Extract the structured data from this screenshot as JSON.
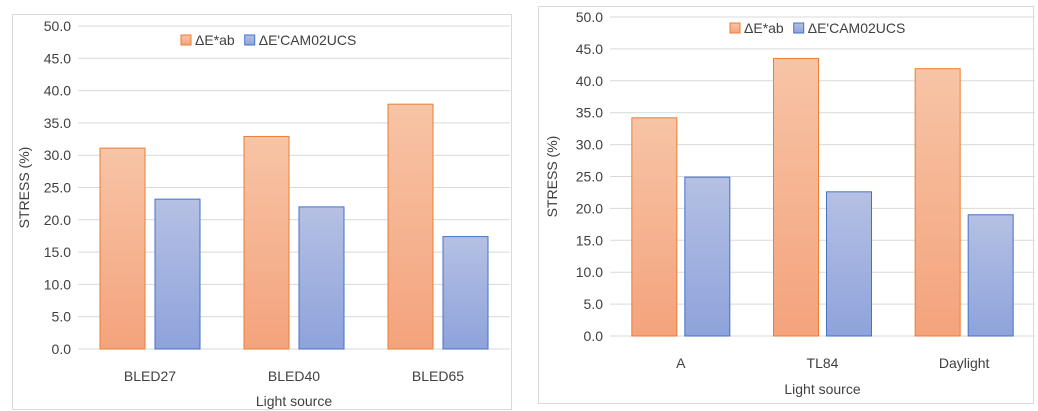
{
  "colors": {
    "series_1_top": "#f7c4a6",
    "series_1_bottom": "#f4a37c",
    "series_1_edge": "#ed7d31",
    "series_2_top": "#b5c0e3",
    "series_2_bottom": "#8ea3dc",
    "series_2_edge": "#4472c4"
  },
  "chart_data": [
    {
      "type": "bar",
      "categories": [
        "BLED27",
        "BLED40",
        "BLED65"
      ],
      "series": [
        {
          "name": "ΔE*ab",
          "values": [
            31.1,
            32.9,
            37.9
          ]
        },
        {
          "name": "ΔE'CAM02UCS",
          "values": [
            23.2,
            22.0,
            17.4
          ]
        }
      ],
      "xlabel": "Light source",
      "ylabel": "STRESS (%)",
      "ylim": [
        0,
        50
      ],
      "yticks": [
        "0.0",
        "5.0",
        "10.0",
        "15.0",
        "20.0",
        "25.0",
        "30.0",
        "35.0",
        "40.0",
        "45.0",
        "50.0"
      ],
      "grid": true,
      "legend_position": "top"
    },
    {
      "type": "bar",
      "categories": [
        "A",
        "TL84",
        "Daylight"
      ],
      "series": [
        {
          "name": "ΔE*ab",
          "values": [
            34.2,
            43.5,
            41.9
          ]
        },
        {
          "name": "ΔE'CAM02UCS",
          "values": [
            24.9,
            22.6,
            19.0
          ]
        }
      ],
      "xlabel": "Light source",
      "ylabel": "STRESS (%)",
      "ylim": [
        0,
        50
      ],
      "yticks": [
        "0.0",
        "5.0",
        "10.0",
        "15.0",
        "20.0",
        "25.0",
        "30.0",
        "35.0",
        "40.0",
        "45.0",
        "50.0"
      ],
      "grid": true,
      "legend_position": "top"
    }
  ]
}
